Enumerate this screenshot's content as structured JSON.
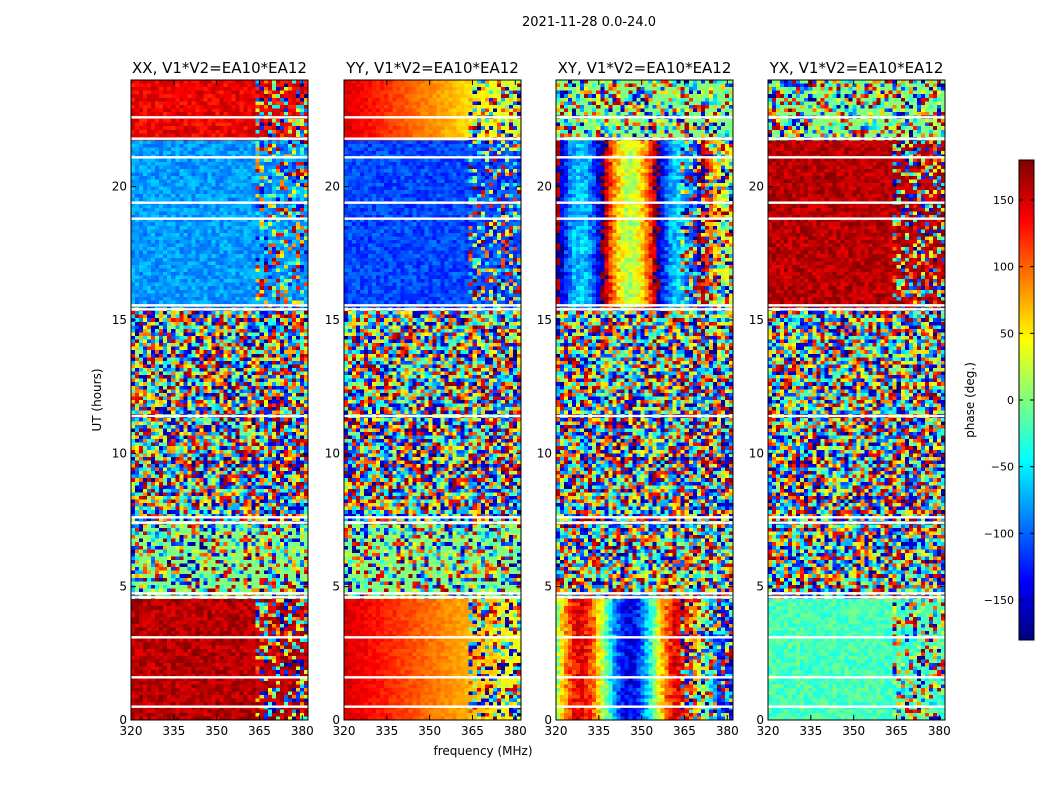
{
  "chart_data": [
    {
      "type": "heatmap",
      "title": "XX, V1*V2=EA10*EA12",
      "polarization": "XX",
      "xlabel": "frequency (MHz)",
      "ylabel": "UT (hours)",
      "xlim": [
        320,
        382
      ],
      "ylim": [
        0,
        24
      ],
      "xticks": [
        320,
        335,
        350,
        365,
        380
      ],
      "yticks": [
        0,
        5,
        10,
        15,
        20
      ],
      "description_bands": [
        {
          "ut_from": 0,
          "ut_to": 4.5,
          "pattern": "coherent",
          "dominant_phase_deg": 160
        },
        {
          "ut_from": 4.5,
          "ut_to": 7.5,
          "pattern": "noisy"
        },
        {
          "ut_from": 7.5,
          "ut_to": 15.5,
          "pattern": "noise",
          "flag_gaps_at": [
            11.4,
            15.5
          ]
        },
        {
          "ut_from": 15.5,
          "ut_to": 21.8,
          "pattern": "coherent",
          "dominant_phase_deg": -80
        },
        {
          "ut_from": 21.8,
          "ut_to": 24,
          "pattern": "coherent",
          "dominant_phase_deg": 140
        }
      ]
    },
    {
      "type": "heatmap",
      "title": "YY, V1*V2=EA10*EA12",
      "polarization": "YY",
      "xlabel": "frequency (MHz)",
      "ylabel": "UT (hours)",
      "xlim": [
        320,
        382
      ],
      "ylim": [
        0,
        24
      ],
      "xticks": [
        320,
        335,
        350,
        365,
        380
      ],
      "yticks": [
        0,
        5,
        10,
        15,
        20
      ],
      "description_bands": [
        {
          "ut_from": 0,
          "ut_to": 4.5,
          "pattern": "gradient",
          "phase_range_deg": [
            150,
            40
          ]
        },
        {
          "ut_from": 4.5,
          "ut_to": 7.5,
          "pattern": "noisy"
        },
        {
          "ut_from": 7.5,
          "ut_to": 15.5,
          "pattern": "noise"
        },
        {
          "ut_from": 15.5,
          "ut_to": 21.8,
          "pattern": "coherent",
          "dominant_phase_deg": -110
        },
        {
          "ut_from": 21.8,
          "ut_to": 24,
          "pattern": "gradient",
          "phase_range_deg": [
            150,
            20
          ]
        }
      ]
    },
    {
      "type": "heatmap",
      "title": "XY, V1*V2=EA10*EA12",
      "polarization": "XY",
      "xlabel": "frequency (MHz)",
      "ylabel": "UT (hours)",
      "xlim": [
        320,
        382
      ],
      "ylim": [
        0,
        24
      ],
      "xticks": [
        320,
        335,
        350,
        365,
        380
      ],
      "yticks": [
        0,
        5,
        10,
        15,
        20
      ],
      "description_bands": [
        {
          "ut_from": 0,
          "ut_to": 4.5,
          "pattern": "striped"
        },
        {
          "ut_from": 4.5,
          "ut_to": 15.5,
          "pattern": "noise"
        },
        {
          "ut_from": 15.5,
          "ut_to": 21.8,
          "pattern": "striped",
          "dominant_phase_deg": 160
        },
        {
          "ut_from": 21.8,
          "ut_to": 24,
          "pattern": "noisy"
        }
      ]
    },
    {
      "type": "heatmap",
      "title": "YX, V1*V2=EA10*EA12",
      "polarization": "YX",
      "xlabel": "frequency (MHz)",
      "ylabel": "UT (hours)",
      "xlim": [
        320,
        382
      ],
      "ylim": [
        0,
        24
      ],
      "xticks": [
        320,
        335,
        350,
        365,
        380
      ],
      "yticks": [
        0,
        5,
        10,
        15,
        20
      ],
      "description_bands": [
        {
          "ut_from": 0,
          "ut_to": 4.5,
          "pattern": "coherent",
          "dominant_phase_deg": -20
        },
        {
          "ut_from": 4.5,
          "ut_to": 15.5,
          "pattern": "noise"
        },
        {
          "ut_from": 15.5,
          "ut_to": 21.8,
          "pattern": "coherent",
          "dominant_phase_deg": 160
        },
        {
          "ut_from": 21.8,
          "ut_to": 24,
          "pattern": "noisy"
        }
      ]
    }
  ],
  "figure": {
    "suptitle": "2021-11-28 0.0-24.0",
    "xlabel": "frequency (MHz)",
    "ylabel": "UT (hours)"
  },
  "colorbar": {
    "label": "phase (deg.)",
    "range": [
      -180,
      180
    ],
    "ticks": [
      -150,
      -100,
      -50,
      0,
      50,
      100,
      150
    ],
    "tick_labels": [
      "−150",
      "−100",
      "−50",
      "0",
      "50",
      "100",
      "150"
    ],
    "colormap": "jet",
    "colors": [
      "#00007f",
      "#0000ff",
      "#007fff",
      "#00ffff",
      "#7fff7f",
      "#ffff00",
      "#ff7f00",
      "#ff0000",
      "#7f0000"
    ]
  },
  "flag_color": "#ffffff"
}
